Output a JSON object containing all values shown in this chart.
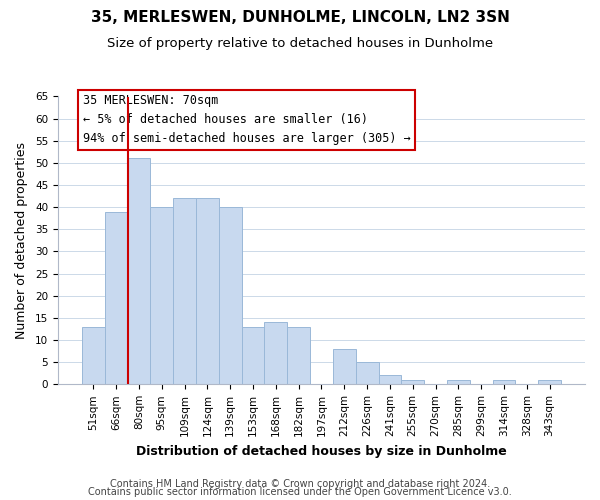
{
  "title": "35, MERLESWEN, DUNHOLME, LINCOLN, LN2 3SN",
  "subtitle": "Size of property relative to detached houses in Dunholme",
  "xlabel": "Distribution of detached houses by size in Dunholme",
  "ylabel": "Number of detached properties",
  "bar_labels": [
    "51sqm",
    "66sqm",
    "80sqm",
    "95sqm",
    "109sqm",
    "124sqm",
    "139sqm",
    "153sqm",
    "168sqm",
    "182sqm",
    "197sqm",
    "212sqm",
    "226sqm",
    "241sqm",
    "255sqm",
    "270sqm",
    "285sqm",
    "299sqm",
    "314sqm",
    "328sqm",
    "343sqm"
  ],
  "bar_values": [
    13,
    39,
    51,
    40,
    42,
    42,
    40,
    13,
    14,
    13,
    0,
    8,
    5,
    2,
    1,
    0,
    1,
    0,
    1,
    0,
    1
  ],
  "bar_color": "#c8d9ef",
  "bar_edge_color": "#9ab8d8",
  "ylim": [
    0,
    65
  ],
  "yticks": [
    0,
    5,
    10,
    15,
    20,
    25,
    30,
    35,
    40,
    45,
    50,
    55,
    60,
    65
  ],
  "vline_x_idx": 1,
  "vline_color": "#cc0000",
  "annotation_title": "35 MERLESWEN: 70sqm",
  "annotation_line1": "← 5% of detached houses are smaller (16)",
  "annotation_line2": "94% of semi-detached houses are larger (305) →",
  "annotation_box_color": "#ffffff",
  "annotation_box_edge": "#cc0000",
  "footer1": "Contains HM Land Registry data © Crown copyright and database right 2024.",
  "footer2": "Contains public sector information licensed under the Open Government Licence v3.0.",
  "background_color": "#ffffff",
  "grid_color": "#ccd9e8",
  "title_fontsize": 11,
  "subtitle_fontsize": 9.5,
  "label_fontsize": 9,
  "tick_fontsize": 7.5,
  "footer_fontsize": 7
}
